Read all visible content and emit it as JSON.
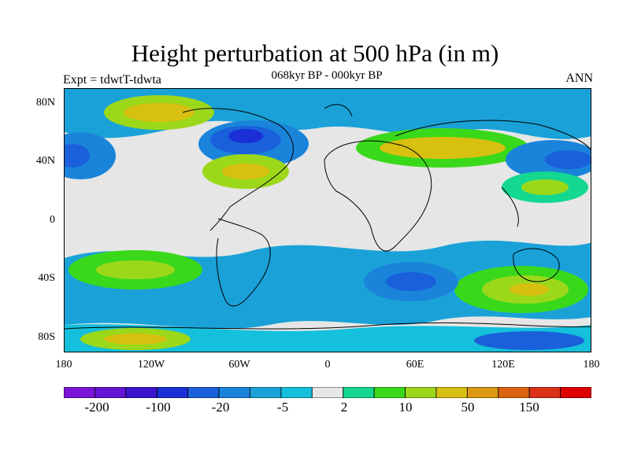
{
  "title": "Height perturbation at 500 hPa (in m)",
  "subtitle": "068kyr BP - 000kyr BP",
  "left_label": "Expt = tdwtT-tdwta",
  "right_label": "ANN",
  "y_ticks": [
    "80N",
    "40N",
    "0",
    "40S",
    "80S"
  ],
  "x_ticks": [
    "180",
    "120W",
    "60W",
    "0",
    "60E",
    "120E",
    "180"
  ],
  "colorbar": {
    "colors": [
      "#7a14d8",
      "#6214d2",
      "#3b14cf",
      "#1a30d6",
      "#1a60da",
      "#1a84da",
      "#1aa2d8",
      "#14c0dc",
      "#e6e6e6",
      "#14d890",
      "#3ad81a",
      "#9cd81a",
      "#d8c010",
      "#dc9810",
      "#dc6410",
      "#dc3018",
      "#dc0000"
    ],
    "labels": [
      "-200",
      "-100",
      "-20",
      "-5",
      "2",
      "10",
      "50",
      "150"
    ]
  }
}
